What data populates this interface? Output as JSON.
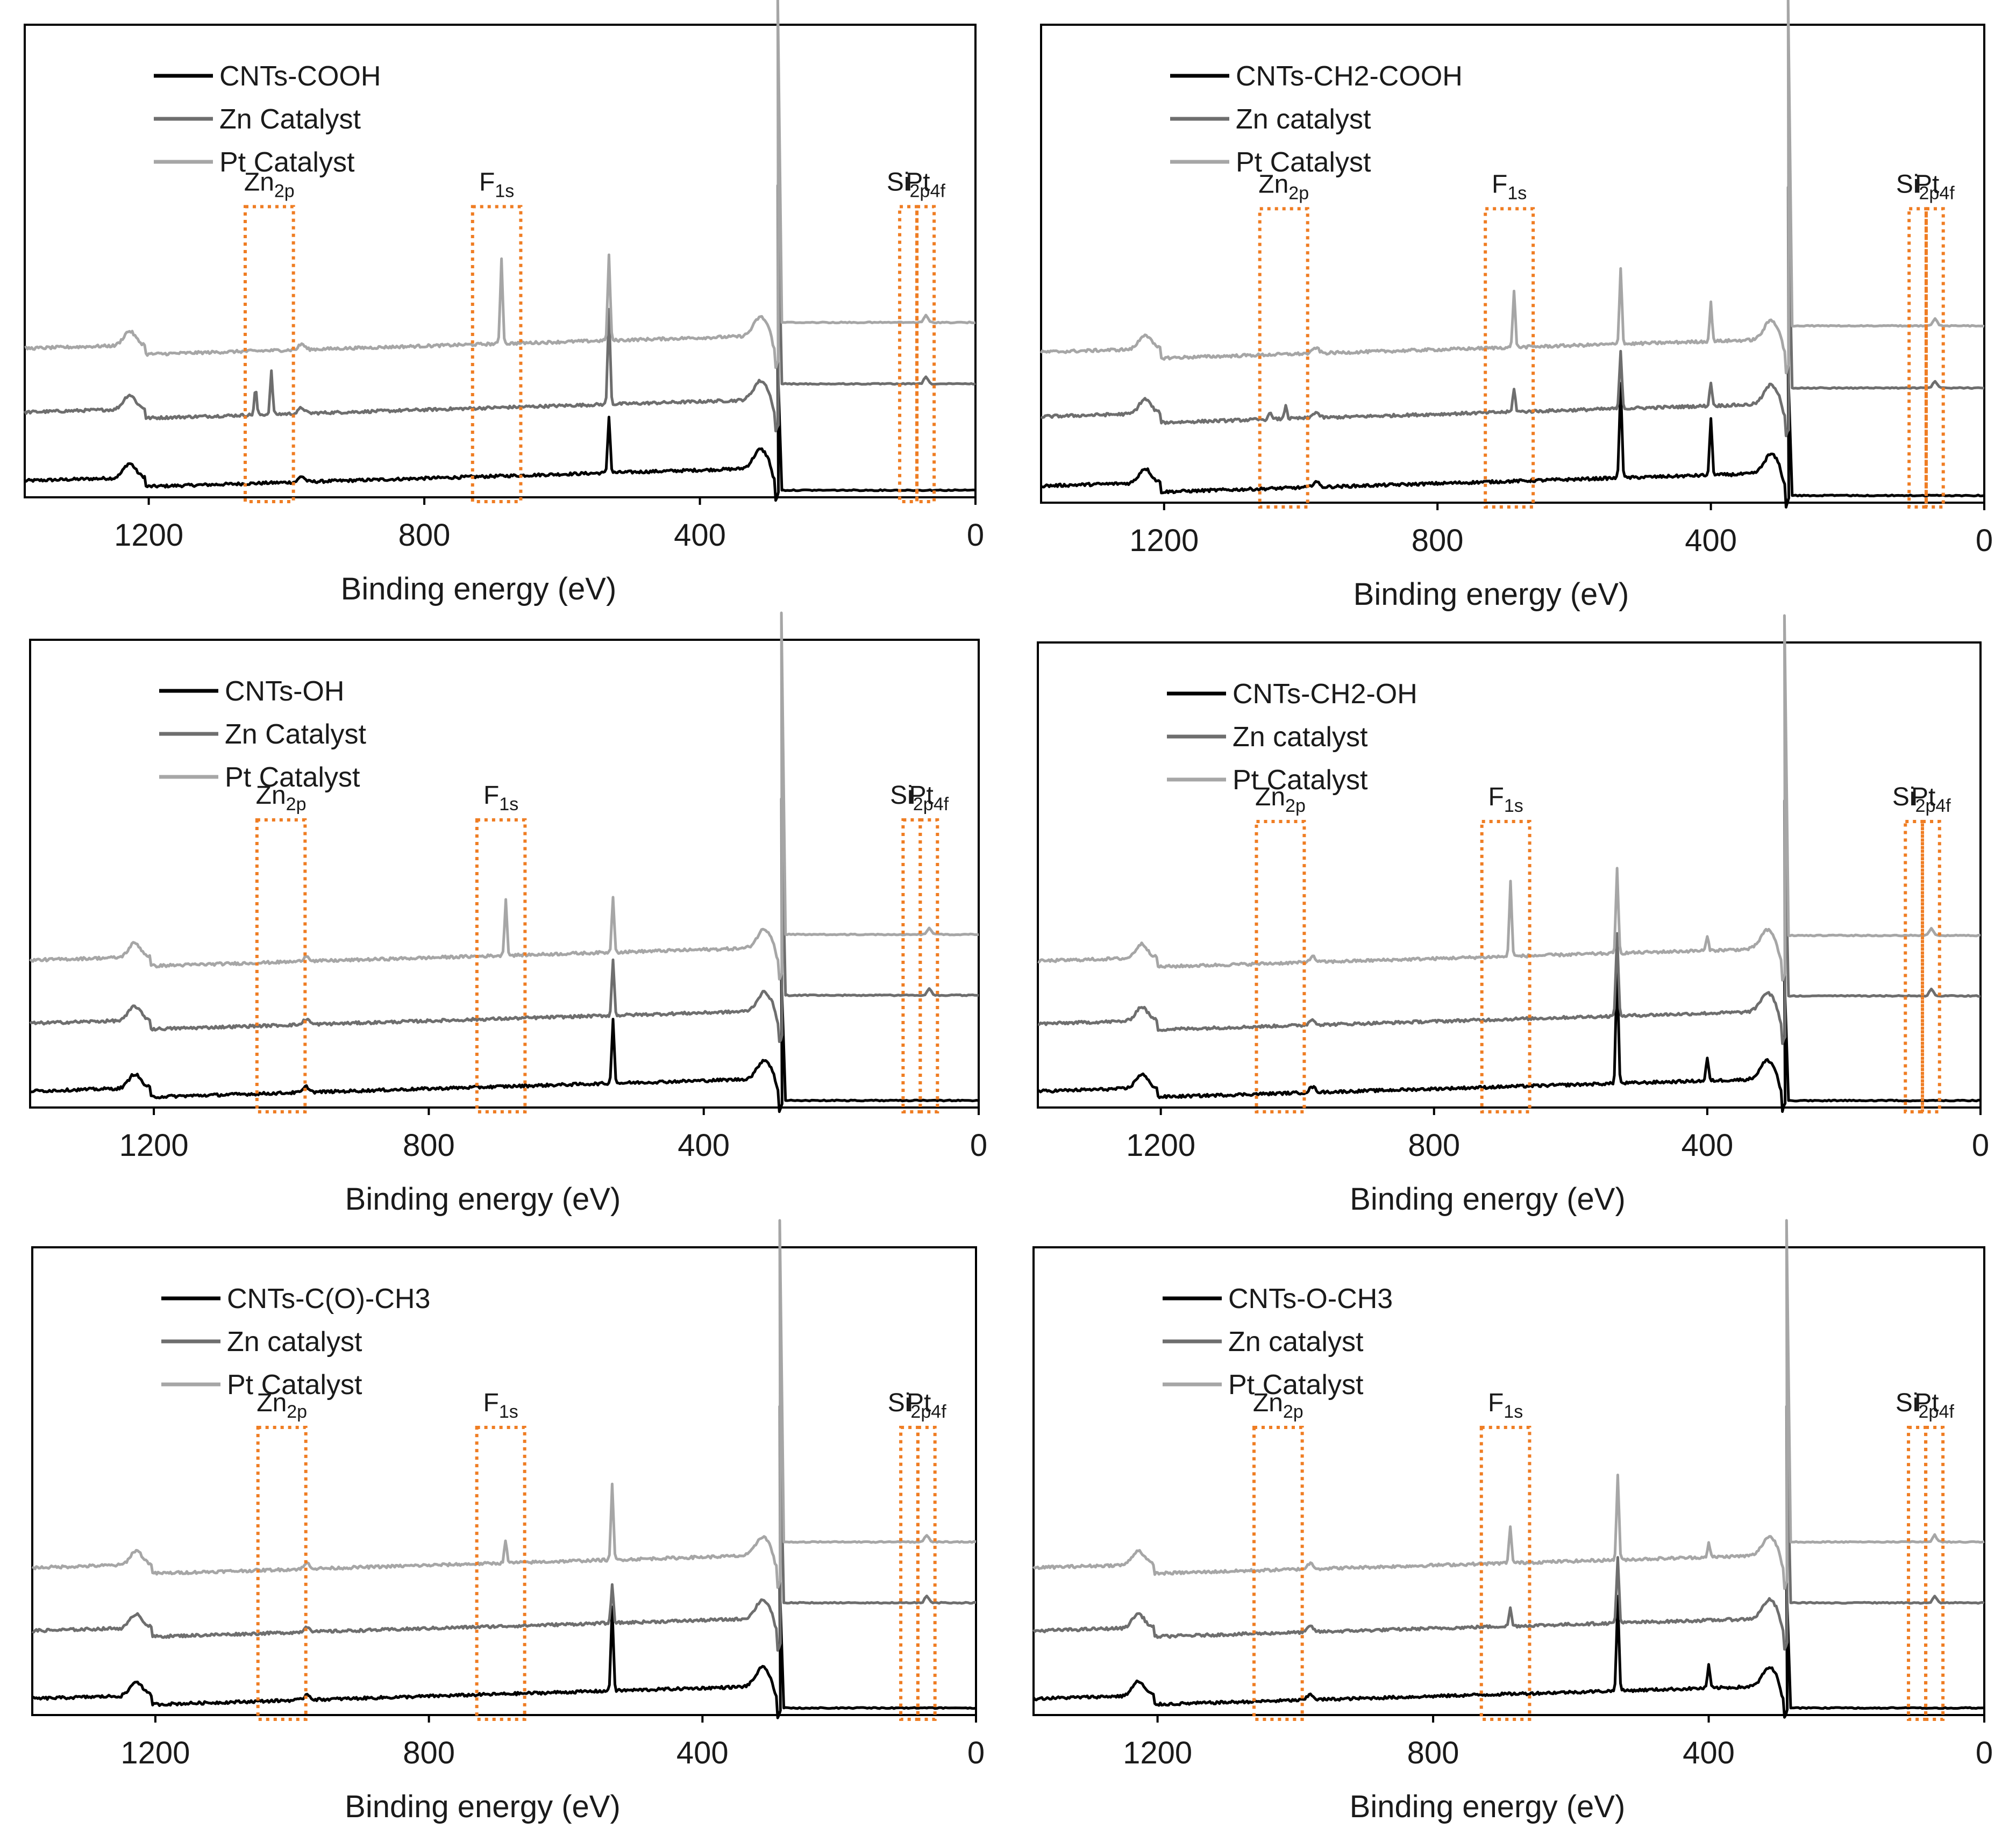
{
  "figure": "XPS survey spectra",
  "colors": {
    "base": "#000000",
    "zn": "#6e6e6e",
    "pt": "#a6a6a6",
    "box": "#ef7d23",
    "frame": "#000000"
  },
  "chart_data": [
    {
      "type": "line",
      "xlabel": "Binding energy (eV)",
      "xlim": [
        1380,
        0
      ],
      "xticks": [
        "1200",
        "800",
        "400",
        "0"
      ],
      "legend": [
        "CNTs-COOH",
        "Zn Catalyst",
        "Pt Catalyst"
      ],
      "regions": [
        {
          "label": "Zn",
          "sub": "2p",
          "range": [
            1060,
            990
          ]
        },
        {
          "label": "F",
          "sub": "1s",
          "range": [
            730,
            660
          ]
        },
        {
          "label": "Si",
          "sub": "2p",
          "range": [
            110,
            85
          ]
        },
        {
          "label": "Pt",
          "sub": "4f",
          "range": [
            85,
            60
          ]
        }
      ],
      "series": [
        {
          "name": "CNTs-COOH",
          "role": "base",
          "peaks": {
            "F1s": 0,
            "Zn2p": 0,
            "O1s": 0.12,
            "N1s": 0
          }
        },
        {
          "name": "Zn Catalyst",
          "role": "zn",
          "peaks": {
            "F1s": 0,
            "Zn2p": 0.09,
            "O1s": 0.2,
            "N1s": 0
          }
        },
        {
          "name": "Pt Catalyst",
          "role": "pt",
          "peaks": {
            "F1s": 0.18,
            "Zn2p": 0,
            "O1s": 0.18,
            "N1s": 0
          }
        }
      ]
    },
    {
      "type": "line",
      "xlabel": "Binding energy (eV)",
      "xlim": [
        1380,
        0
      ],
      "xticks": [
        "1200",
        "800",
        "400",
        "0"
      ],
      "legend": [
        "CNTs-CH2-COOH",
        "Zn catalyst",
        "Pt Catalyst"
      ],
      "regions": [
        {
          "label": "Zn",
          "sub": "2p",
          "range": [
            1060,
            990
          ]
        },
        {
          "label": "F",
          "sub": "1s",
          "range": [
            730,
            660
          ]
        },
        {
          "label": "Si",
          "sub": "2p",
          "range": [
            110,
            85
          ]
        },
        {
          "label": "Pt",
          "sub": "4f",
          "range": [
            85,
            60
          ]
        }
      ],
      "series": [
        {
          "name": "CNTs-CH2-COOH",
          "role": "base",
          "peaks": {
            "F1s": 0,
            "Zn2p": 0,
            "O1s": 0.2,
            "N1s": 0.12
          }
        },
        {
          "name": "Zn catalyst",
          "role": "zn",
          "peaks": {
            "F1s": 0.05,
            "Zn2p": 0.03,
            "O1s": 0.12,
            "N1s": 0.05
          }
        },
        {
          "name": "Pt Catalyst",
          "role": "pt",
          "peaks": {
            "F1s": 0.12,
            "Zn2p": 0,
            "O1s": 0.16,
            "N1s": 0.08
          }
        }
      ]
    },
    {
      "type": "line",
      "xlabel": "Binding energy (eV)",
      "xlim": [
        1380,
        0
      ],
      "xticks": [
        "1200",
        "800",
        "400",
        "0"
      ],
      "legend": [
        "CNTs-OH",
        "Zn Catalyst",
        "Pt Catalyst"
      ],
      "regions": [
        {
          "label": "Zn",
          "sub": "2p",
          "range": [
            1050,
            980
          ]
        },
        {
          "label": "F",
          "sub": "1s",
          "range": [
            730,
            660
          ]
        },
        {
          "label": "Si",
          "sub": "2p",
          "range": [
            110,
            85
          ]
        },
        {
          "label": "Pt",
          "sub": "4f",
          "range": [
            85,
            60
          ]
        }
      ],
      "series": [
        {
          "name": "CNTs-OH",
          "role": "base",
          "peaks": {
            "F1s": 0,
            "Zn2p": 0,
            "O1s": 0.14,
            "N1s": 0
          }
        },
        {
          "name": "Zn Catalyst",
          "role": "zn",
          "peaks": {
            "F1s": 0,
            "Zn2p": 0,
            "O1s": 0.12,
            "N1s": 0
          }
        },
        {
          "name": "Pt Catalyst",
          "role": "pt",
          "peaks": {
            "F1s": 0.12,
            "Zn2p": 0,
            "O1s": 0.12,
            "N1s": 0
          }
        }
      ]
    },
    {
      "type": "line",
      "xlabel": "Binding energy (eV)",
      "xlim": [
        1380,
        0
      ],
      "xticks": [
        "1200",
        "800",
        "400",
        "0"
      ],
      "legend": [
        "CNTs-CH2-OH",
        "Zn catalyst",
        "Pt Catalyst"
      ],
      "regions": [
        {
          "label": "Zn",
          "sub": "2p",
          "range": [
            1060,
            990
          ]
        },
        {
          "label": "F",
          "sub": "1s",
          "range": [
            730,
            660
          ]
        },
        {
          "label": "Si",
          "sub": "2p",
          "range": [
            110,
            85
          ]
        },
        {
          "label": "Pt",
          "sub": "4f",
          "range": [
            85,
            60
          ]
        }
      ],
      "series": [
        {
          "name": "CNTs-CH2-OH",
          "role": "base",
          "peaks": {
            "F1s": 0,
            "Zn2p": 0,
            "O1s": 0.26,
            "N1s": 0.05
          }
        },
        {
          "name": "Zn catalyst",
          "role": "zn",
          "peaks": {
            "F1s": 0,
            "Zn2p": 0,
            "O1s": 0.18,
            "N1s": 0
          }
        },
        {
          "name": "Pt Catalyst",
          "role": "pt",
          "peaks": {
            "F1s": 0.16,
            "Zn2p": 0,
            "O1s": 0.18,
            "N1s": 0.03
          }
        }
      ]
    },
    {
      "type": "line",
      "xlabel": "Binding energy (eV)",
      "xlim": [
        1380,
        0
      ],
      "xticks": [
        "1200",
        "800",
        "400",
        "0"
      ],
      "legend": [
        "CNTs-C(O)-CH3",
        "Zn catalyst",
        "Pt Catalyst"
      ],
      "regions": [
        {
          "label": "Zn",
          "sub": "2p",
          "range": [
            1050,
            980
          ]
        },
        {
          "label": "F",
          "sub": "1s",
          "range": [
            730,
            660
          ]
        },
        {
          "label": "Si",
          "sub": "2p",
          "range": [
            110,
            85
          ]
        },
        {
          "label": "Pt",
          "sub": "4f",
          "range": [
            85,
            60
          ]
        }
      ],
      "series": [
        {
          "name": "CNTs-C(O)-CH3",
          "role": "base",
          "peaks": {
            "F1s": 0,
            "Zn2p": 0,
            "O1s": 0.18,
            "N1s": 0
          }
        },
        {
          "name": "Zn catalyst",
          "role": "zn",
          "peaks": {
            "F1s": 0,
            "Zn2p": 0,
            "O1s": 0.08,
            "N1s": 0
          }
        },
        {
          "name": "Pt Catalyst",
          "role": "pt",
          "peaks": {
            "F1s": 0.05,
            "Zn2p": 0,
            "O1s": 0.16,
            "N1s": 0
          }
        }
      ]
    },
    {
      "type": "line",
      "xlabel": "Binding energy (eV)",
      "xlim": [
        1380,
        0
      ],
      "xticks": [
        "1200",
        "800",
        "400",
        "0"
      ],
      "legend": [
        "CNTs-O-CH3",
        "Zn catalyst",
        "Pt Catalyst"
      ],
      "regions": [
        {
          "label": "Zn",
          "sub": "2p",
          "range": [
            1060,
            990
          ]
        },
        {
          "label": "F",
          "sub": "1s",
          "range": [
            730,
            660
          ]
        },
        {
          "label": "Si",
          "sub": "2p",
          "range": [
            110,
            85
          ]
        },
        {
          "label": "Pt",
          "sub": "4f",
          "range": [
            85,
            60
          ]
        }
      ],
      "series": [
        {
          "name": "CNTs-O-CH3",
          "role": "base",
          "peaks": {
            "F1s": 0,
            "Zn2p": 0,
            "O1s": 0.2,
            "N1s": 0.05
          }
        },
        {
          "name": "Zn catalyst",
          "role": "zn",
          "peaks": {
            "F1s": 0.04,
            "Zn2p": 0,
            "O1s": 0.14,
            "N1s": 0
          }
        },
        {
          "name": "Pt Catalyst",
          "role": "pt",
          "peaks": {
            "F1s": 0.08,
            "Zn2p": 0,
            "O1s": 0.18,
            "N1s": 0.03
          }
        }
      ]
    }
  ]
}
